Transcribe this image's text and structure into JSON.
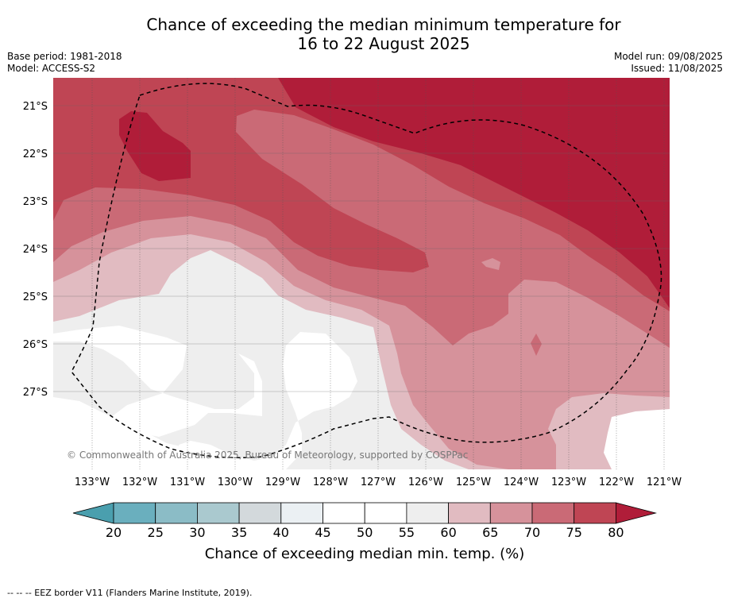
{
  "title_line1": "Chance of exceeding the median minimum temperature for",
  "title_line2": "16 to 22 August 2025",
  "base_period": "Base period: 1981-2018",
  "model": "Model: ACCESS-S2",
  "model_run": "Model run: 09/08/2025",
  "issued": "Issued: 11/08/2025",
  "copyright": "© Commonwealth of Australia 2025, Bureau of Meteorology, supported by COSPPac",
  "lat_labels": [
    "21°S",
    "22°S",
    "23°S",
    "24°S",
    "25°S",
    "26°S",
    "27°S"
  ],
  "lon_labels": [
    "133°W",
    "132°W",
    "131°W",
    "130°W",
    "129°W",
    "128°W",
    "127°W",
    "126°W",
    "125°W",
    "124°W",
    "123°W",
    "122°W",
    "121°W"
  ],
  "colorbar": {
    "title": "Chance of exceeding median min. temp. (%)",
    "ticks": [
      "20",
      "25",
      "30",
      "35",
      "40",
      "45",
      "50",
      "55",
      "60",
      "65",
      "70",
      "75",
      "80"
    ],
    "colors": [
      "#4a9fae",
      "#6aafbe",
      "#8bbcc6",
      "#aac9cf",
      "#d3d9dc",
      "#ebf0f3",
      "#ffffff",
      "#ffffff",
      "#eeeeee",
      "#e1bbc1",
      "#d6929b",
      "#ca6a76",
      "#bf4554",
      "#b01d39"
    ]
  },
  "footnote": "--  --  -- EEZ border V11 (Flanders Marine Institute, 2019)."
}
